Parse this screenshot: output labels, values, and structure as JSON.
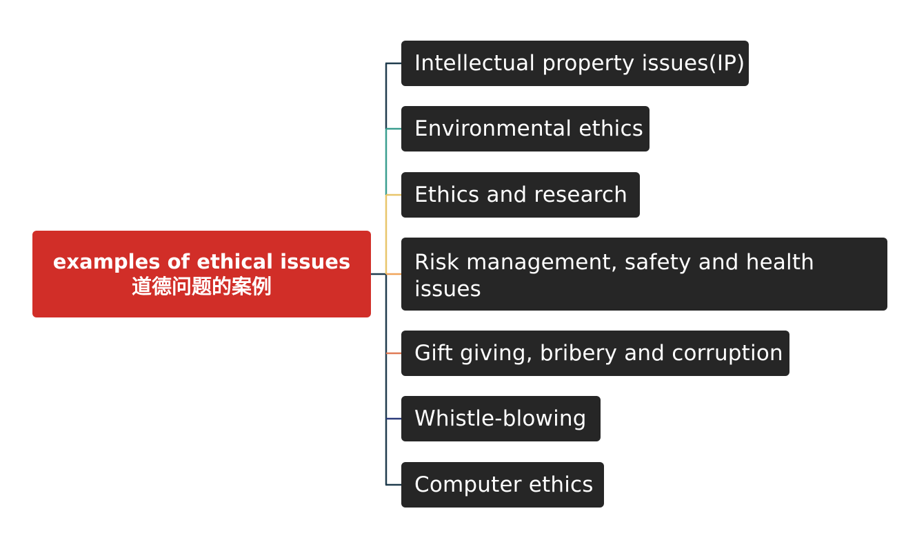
{
  "root": {
    "line1": "examples of ethical issues",
    "line2": "道德问题的案例",
    "color": "#d12e28"
  },
  "children": [
    {
      "label": "Intellectual property issues(IP)",
      "connector_color": "#1f3b4d"
    },
    {
      "label": "Environmental ethics",
      "connector_color": "#3a9e8f"
    },
    {
      "label": "Ethics and research",
      "connector_color": "#e8c56a"
    },
    {
      "label": "Risk management, safety and health issues",
      "connector_color": "#f0a45a"
    },
    {
      "label": "Gift giving, bribery and corruption",
      "connector_color": "#e07a55"
    },
    {
      "label": "Whistle-blowing",
      "connector_color": "#2a3a7a"
    },
    {
      "label": "Computer ethics",
      "connector_color": "#1f3b4d"
    }
  ],
  "node_color": "#262626"
}
